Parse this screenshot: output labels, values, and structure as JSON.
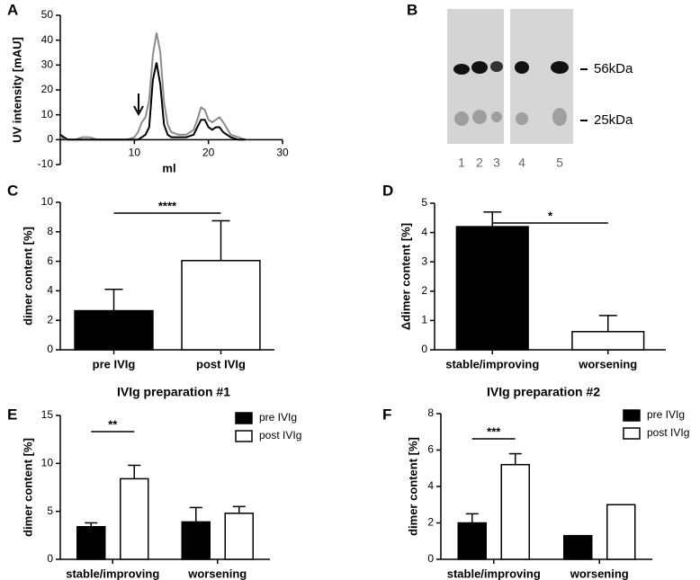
{
  "chart_data": [
    {
      "type": "line",
      "panel": "A",
      "ylabel": "UV intensity [mAU]",
      "xlabel": "ml",
      "xlim": [
        0,
        30
      ],
      "xticks": [
        10,
        20,
        30
      ],
      "ylim": [
        -10,
        50
      ],
      "yticks": [
        -10,
        0,
        10,
        20,
        30,
        40,
        50
      ],
      "x": [
        0,
        1,
        2,
        3,
        4,
        5,
        6,
        7,
        8,
        9,
        10,
        10.5,
        11,
        11.5,
        12,
        12.5,
        13,
        13.5,
        14,
        14.5,
        15,
        16,
        17,
        18,
        18.5,
        19,
        19.5,
        20,
        20.5,
        21,
        21.5,
        22,
        23,
        24,
        25
      ],
      "series": [
        {
          "color": "#8c8c8c",
          "values": [
            1,
            0,
            0,
            1,
            1,
            0,
            0,
            0,
            0,
            0,
            1,
            3,
            7,
            9,
            16,
            34,
            43,
            35,
            15,
            6,
            3,
            2,
            2,
            4,
            8,
            13,
            12,
            8,
            7,
            8,
            9,
            7,
            2,
            1,
            0
          ]
        },
        {
          "color": "#000000",
          "values": [
            2,
            0,
            0,
            0,
            0,
            0,
            0,
            0,
            0,
            0,
            0,
            0,
            1,
            2,
            5,
            24,
            31,
            22,
            6,
            2,
            1,
            1,
            1,
            2,
            5,
            8,
            8,
            5,
            4,
            5,
            5,
            3,
            1,
            0,
            0
          ]
        }
      ]
    },
    {
      "type": "gel",
      "panel": "B",
      "lane_labels": [
        "1",
        "2",
        "3",
        "4",
        "5"
      ],
      "markers": [
        "56kDa",
        "25kDa"
      ]
    },
    {
      "type": "bar",
      "panel": "C",
      "ylabel": "dimer content [%]",
      "categories": [
        "pre IVIg",
        "post IVIg"
      ],
      "values": [
        2.65,
        6.05
      ],
      "errors": [
        1.45,
        2.7
      ],
      "colors": [
        "#000000",
        "#ffffff"
      ],
      "ylim": [
        0,
        10
      ],
      "yticks": [
        0,
        2,
        4,
        6,
        8,
        10
      ],
      "annotations": [
        "****"
      ]
    },
    {
      "type": "bar",
      "panel": "D",
      "ylabel": "Δdimer content [%]",
      "categories": [
        "stable/improving",
        "worsening"
      ],
      "values": [
        4.2,
        0.62
      ],
      "errors": [
        0.5,
        0.55
      ],
      "colors": [
        "#000000",
        "#ffffff"
      ],
      "ylim": [
        0,
        5
      ],
      "yticks": [
        0,
        1,
        2,
        3,
        4,
        5
      ],
      "annotations": [
        "*"
      ]
    },
    {
      "type": "bar",
      "panel": "E",
      "title": "IVIg preparation #1",
      "ylabel": "dimer content [%]",
      "categories": [
        "stable/improving",
        "worsening"
      ],
      "series": [
        {
          "name": "pre IVIg",
          "color": "#000000",
          "values": [
            3.4,
            3.9
          ],
          "errors": [
            0.4,
            1.5
          ]
        },
        {
          "name": "post IVIg",
          "color": "#ffffff",
          "values": [
            8.4,
            4.8
          ],
          "errors": [
            1.4,
            0.7
          ]
        }
      ],
      "ylim": [
        0,
        15
      ],
      "yticks": [
        0,
        5,
        10,
        15
      ],
      "annotations": [
        "**"
      ]
    },
    {
      "type": "bar",
      "panel": "F",
      "title": "IVIg preparation #2",
      "ylabel": "dimer content [%]",
      "categories": [
        "stable/improving",
        "worsening"
      ],
      "series": [
        {
          "name": "pre IVIg",
          "color": "#000000",
          "values": [
            2.0,
            1.3
          ],
          "errors": [
            0.5,
            null
          ]
        },
        {
          "name": "post IVIg",
          "color": "#ffffff",
          "values": [
            5.2,
            3.0
          ],
          "errors": [
            0.6,
            null
          ]
        }
      ],
      "ylim": [
        0,
        8
      ],
      "yticks": [
        0,
        2,
        4,
        6,
        8
      ],
      "annotations": [
        "***"
      ]
    }
  ]
}
